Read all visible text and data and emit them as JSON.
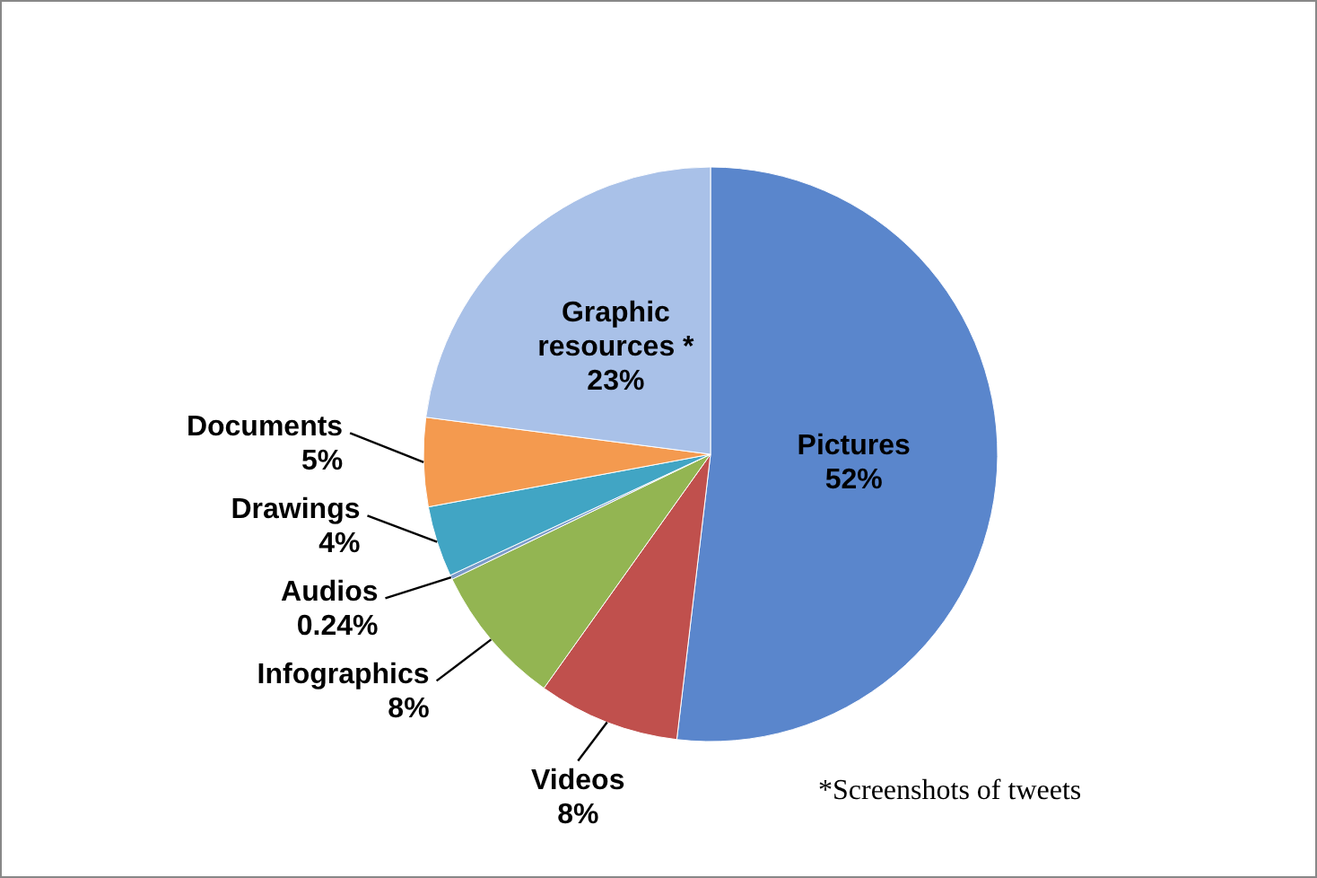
{
  "chart_data": {
    "type": "pie",
    "categories": [
      "Pictures",
      "Videos",
      "Infographics",
      "Audios",
      "Drawings",
      "Documents",
      "Graphic resources *"
    ],
    "values": [
      52,
      8,
      8,
      0.24,
      4,
      5,
      23
    ],
    "value_labels": [
      "52%",
      "8%",
      "8%",
      "0.24%",
      "4%",
      "5%",
      "23%"
    ],
    "colors": [
      "#5a86cc",
      "#c0504d",
      "#93b552",
      "#7c9bc9",
      "#41a5c4",
      "#f49a4f",
      "#a9c1e8"
    ],
    "annotations": [
      "*Screenshots of tweets"
    ]
  }
}
